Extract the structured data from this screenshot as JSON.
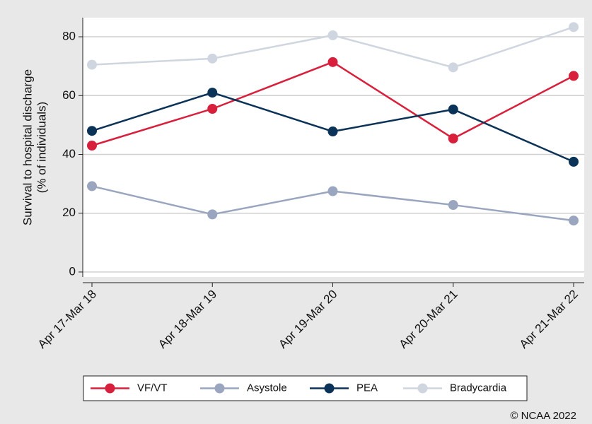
{
  "chart_data": {
    "type": "line",
    "ylabel": [
      "Survival to hospital discharge",
      "(% of individuals)"
    ],
    "categories": [
      "Apr 17-Mar 18",
      "Apr 18-Mar 19",
      "Apr 19-Mar 20",
      "Apr 20-Mar 21",
      "Apr 21-Mar 22"
    ],
    "series": [
      {
        "name": "VF/VT",
        "color": "#d8203c",
        "values": [
          43,
          55.5,
          71.4,
          45.4,
          66.7
        ]
      },
      {
        "name": "Asystole",
        "color": "#9aa6bf",
        "values": [
          29.2,
          19.6,
          27.5,
          22.8,
          17.5
        ]
      },
      {
        "name": "PEA",
        "color": "#0b3358",
        "values": [
          48,
          61,
          47.8,
          55.3,
          37.5
        ]
      },
      {
        "name": "Bradycardia",
        "color": "#cfd6e0",
        "values": [
          70.5,
          72.6,
          80.5,
          69.6,
          83.3
        ]
      }
    ],
    "ylim": [
      -1.7,
      86.5
    ],
    "yticks": [
      0,
      20,
      40,
      60,
      80
    ],
    "grid": true,
    "legend": "bottom",
    "footer": "© NCAA 2022"
  }
}
